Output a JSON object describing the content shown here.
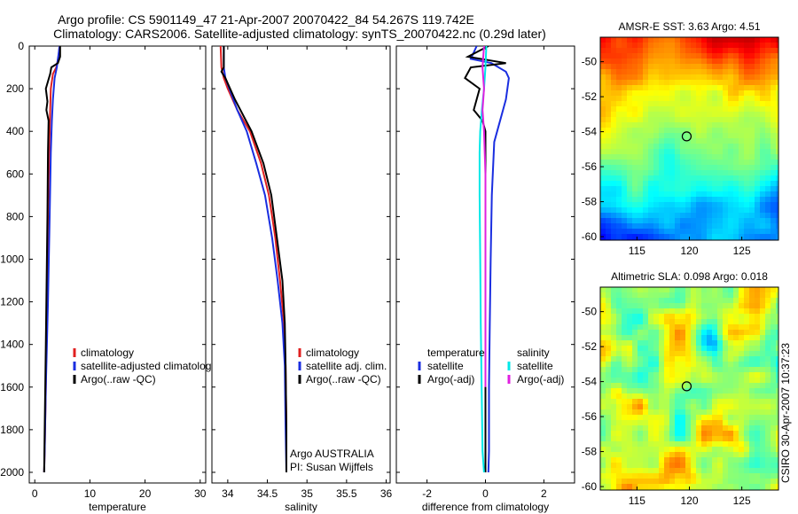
{
  "header": {
    "title_line1": "Argo profile: CS 5901149_47 21-Apr-2007 20070422_84 54.267S 119.742E",
    "title_line2": "Climatology: CARS2006. Satellite-adjusted climatology: synTS_20070422.nc (0.29d later)"
  },
  "credit": {
    "agency": "Argo AUSTRALIA",
    "pi": "PI: Susan Wijffels",
    "stamp": "CSIRO 30-Apr-2007 10:37:23"
  },
  "colors": {
    "climatology": "#e02020",
    "satellite": "#1a2ee0",
    "argo": "#000000",
    "satellite_salinity": "#00e8e8",
    "argo_salinity": "#e020e0",
    "marker": "#000000"
  },
  "chart_data": [
    {
      "id": "temperature",
      "type": "line",
      "xlabel": "temperature",
      "ylabel": "",
      "xlim": [
        -1,
        31
      ],
      "ylim": [
        2050,
        0
      ],
      "xticks": [
        0,
        10,
        20,
        30
      ],
      "yticks": [
        0,
        200,
        400,
        600,
        800,
        1000,
        1200,
        1400,
        1600,
        1800,
        2000
      ],
      "legend": {
        "placement": "lower-right",
        "entries": [
          "climatology",
          "satellite-adjusted climatology",
          "Argo(..raw -QC)"
        ]
      },
      "series": [
        {
          "name": "climatology",
          "color_key": "climatology",
          "x": [
            4.5,
            4.3,
            3.9,
            3.3,
            2.9,
            2.8,
            2.7,
            2.6,
            2.4,
            2.2,
            2.0,
            1.8,
            1.7
          ],
          "y": [
            0,
            50,
            100,
            130,
            200,
            300,
            400,
            500,
            800,
            1200,
            1600,
            1900,
            2000
          ]
        },
        {
          "name": "satellite-adjusted climatology",
          "color_key": "satellite",
          "x": [
            4.5,
            4.4,
            4.3,
            4.2,
            4.0,
            3.6,
            3.3,
            3.1,
            2.9,
            2.7,
            2.4,
            2.0,
            1.8,
            1.7
          ],
          "y": [
            0,
            20,
            40,
            60,
            100,
            150,
            250,
            350,
            500,
            800,
            1200,
            1600,
            1900,
            2000
          ]
        },
        {
          "name": "Argo(..raw -QC)",
          "color_key": "argo",
          "x": [
            4.6,
            4.6,
            4.2,
            3.0,
            2.8,
            2.0,
            2.3,
            2.1,
            2.5,
            2.4,
            2.3,
            2.0,
            1.8,
            1.7
          ],
          "y": [
            0,
            50,
            80,
            100,
            130,
            200,
            260,
            300,
            350,
            500,
            800,
            1400,
            1800,
            2000
          ]
        }
      ]
    },
    {
      "id": "salinity",
      "type": "line",
      "xlabel": "salinity",
      "ylabel": "",
      "xlim": [
        33.8,
        36.05
      ],
      "ylim": [
        2050,
        0
      ],
      "xticks": [
        34,
        34.5,
        35,
        35.5,
        36
      ],
      "xtick_labels": [
        "34",
        "34.5",
        "35",
        "35.5",
        "36"
      ],
      "legend": {
        "placement": "lower-right",
        "entries": [
          "climatology",
          "satellite adj. clim.",
          "Argo(..raw -QC)"
        ]
      },
      "series": [
        {
          "name": "climatology",
          "color_key": "climatology",
          "x": [
            33.91,
            33.92,
            33.95,
            34.0,
            34.12,
            34.28,
            34.42,
            34.52,
            34.6,
            34.66,
            34.71,
            34.73,
            34.74,
            34.74
          ],
          "y": [
            0,
            100,
            150,
            200,
            300,
            400,
            550,
            700,
            900,
            1100,
            1300,
            1500,
            1800,
            2000
          ]
        },
        {
          "name": "satellite adj. clim.",
          "color_key": "satellite",
          "x": [
            33.95,
            33.95,
            33.97,
            34.02,
            34.12,
            34.24,
            34.36,
            34.47,
            34.56,
            34.63,
            34.69,
            34.72,
            34.73,
            34.74
          ],
          "y": [
            0,
            100,
            150,
            200,
            300,
            400,
            550,
            700,
            900,
            1100,
            1300,
            1500,
            1800,
            2000
          ]
        },
        {
          "name": "Argo(..raw -QC)",
          "color_key": "argo",
          "x": [
            33.95,
            33.95,
            33.92,
            33.97,
            34.09,
            34.3,
            34.45,
            34.55,
            34.62,
            34.69,
            34.72,
            34.73,
            34.74,
            34.74
          ],
          "y": [
            0,
            100,
            120,
            150,
            250,
            400,
            550,
            700,
            900,
            1100,
            1300,
            1500,
            1800,
            2000
          ]
        }
      ]
    },
    {
      "id": "difference",
      "type": "line",
      "xlabel": "difference from climatology",
      "ylabel": "",
      "xlim": [
        -3.05,
        3.05
      ],
      "ylim": [
        2050,
        0
      ],
      "xticks": [
        -2,
        0,
        2
      ],
      "legend": {
        "placement": "lower-center",
        "columns": [
          {
            "header": "temperature",
            "entries": [
              "satellite",
              "Argo(-adj)"
            ]
          },
          {
            "header": "salinity",
            "entries": [
              "satellite",
              "Argo(-adj)"
            ]
          }
        ]
      },
      "series": [
        {
          "name": "temperature satellite",
          "color_key": "satellite",
          "x": [
            -0.3,
            -0.5,
            0.2,
            0.7,
            0.8,
            0.7,
            0.5,
            0.3,
            0.22,
            0.18,
            0.15,
            0.12,
            0.12,
            0.1
          ],
          "y": [
            0,
            60,
            80,
            120,
            150,
            250,
            350,
            450,
            700,
            1000,
            1300,
            1600,
            1900,
            2000
          ]
        },
        {
          "name": "temperature Argo(-adj)",
          "color_key": "argo",
          "x": [
            0.1,
            -0.6,
            0.7,
            -0.5,
            -0.7,
            -0.2,
            -0.4,
            -0.1,
            0.0,
            0.0,
            0.0,
            0.0
          ],
          "y": [
            0,
            50,
            80,
            100,
            150,
            200,
            300,
            350,
            400,
            700,
            1500,
            2000
          ]
        },
        {
          "name": "salinity satellite",
          "color_key": "satellite_salinity",
          "x": [
            0.03,
            0.0,
            -0.05,
            -0.12,
            -0.18,
            -0.2,
            -0.2,
            -0.18,
            -0.16,
            -0.13,
            -0.1,
            -0.05
          ],
          "y": [
            0,
            100,
            200,
            300,
            400,
            500,
            700,
            1000,
            1300,
            1600,
            1900,
            2000
          ]
        },
        {
          "name": "salinity Argo(-adj)",
          "color_key": "argo_salinity",
          "x": [
            -0.05,
            -0.1,
            -0.05,
            -0.1,
            -0.05,
            0.0,
            0.0,
            0.0
          ],
          "y": [
            0,
            100,
            200,
            300,
            400,
            600,
            1000,
            1600
          ]
        }
      ]
    },
    {
      "id": "sst_map",
      "type": "heatmap",
      "title": "AMSR-E SST: 3.63 Argo: 4.51",
      "xlim": [
        111.5,
        128.5
      ],
      "ylim": [
        -60.2,
        -48.6
      ],
      "xticks": [
        115,
        120,
        125
      ],
      "yticks": [
        -50,
        -52,
        -54,
        -56,
        -58,
        -60
      ],
      "marker": {
        "x": 119.742,
        "y": -54.267
      },
      "colormap": "jet"
    },
    {
      "id": "sla_map",
      "type": "heatmap",
      "title": "Altimetric SLA: 0.098 Argo: 0.018",
      "xlim": [
        111.5,
        128.5
      ],
      "ylim": [
        -60.2,
        -48.6
      ],
      "xticks": [
        115,
        120,
        125
      ],
      "yticks": [
        -50,
        -52,
        -54,
        -56,
        -58,
        -60
      ],
      "marker": {
        "x": 119.742,
        "y": -54.267
      },
      "colormap": "jet"
    }
  ]
}
